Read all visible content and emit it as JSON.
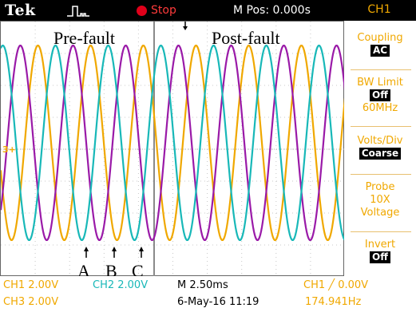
{
  "header": {
    "brand": "Tek",
    "trigger_icon": "trigger-pulse-icon",
    "run_status": "Stop",
    "horizontal_position": "M Pos: 0.000s",
    "channel": "CH1"
  },
  "screen": {
    "labels": {
      "pre_fault": "Pre-fault",
      "post_fault": "Post-fault"
    },
    "markers": [
      "A",
      "B",
      "C"
    ],
    "channel_marker": "3+"
  },
  "side_menu": {
    "coupling": {
      "label": "Coupling",
      "value": "AC"
    },
    "bw_limit": {
      "label": "BW Limit",
      "value": "Off",
      "sub": "60MHz"
    },
    "volts_div": {
      "label": "Volts/Div",
      "value": "Coarse"
    },
    "probe": {
      "label": "Probe",
      "value1": "10X",
      "value2": "Voltage"
    },
    "invert": {
      "label": "Invert",
      "value": "Off"
    }
  },
  "readouts": {
    "ch1": "CH1  2.00V",
    "ch2": "CH2  2.00V",
    "ch3": "CH3  2.00V",
    "timebase": "M 2.50ms",
    "date": "6-May-16 11:19",
    "trigger": "CH1  ╱  0.00V",
    "frequency": "174.941Hz"
  },
  "colors": {
    "ch1": "#f0a800",
    "ch2": "#18b8b8",
    "ch3": "#9a1aa8",
    "accent": "#f0a800"
  }
}
